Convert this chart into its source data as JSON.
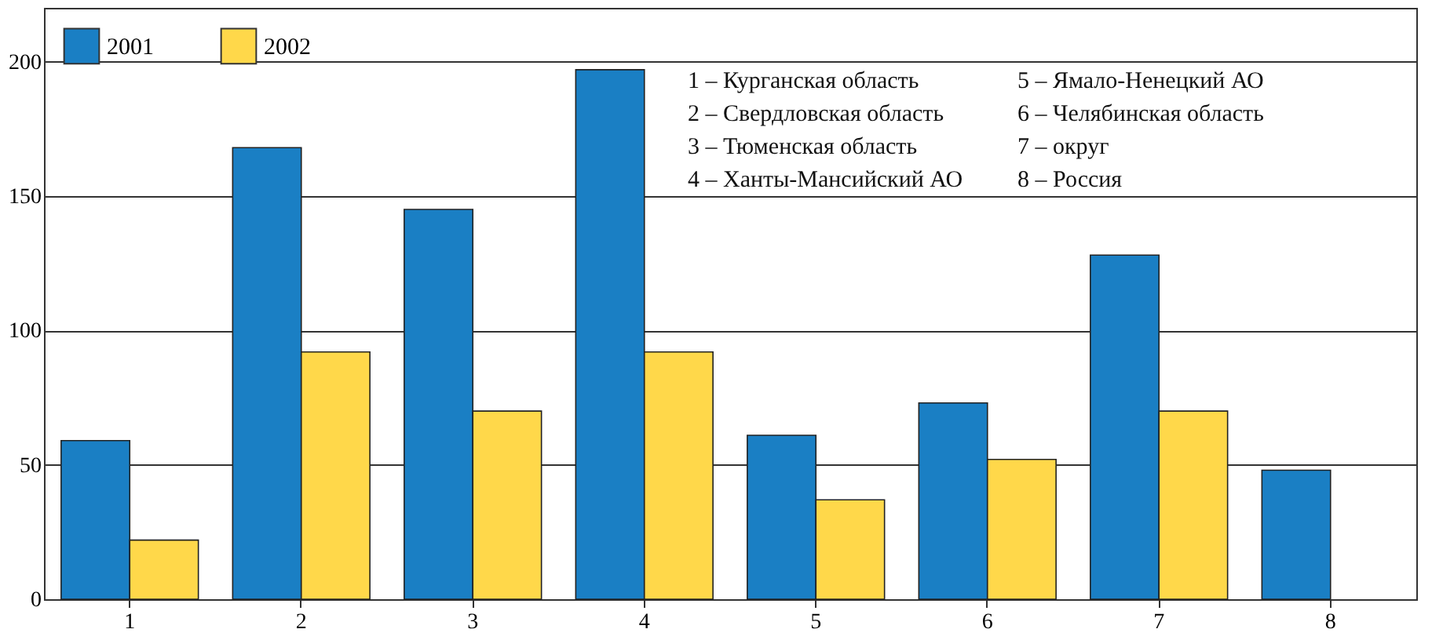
{
  "chart_data": {
    "type": "bar",
    "categories": [
      "1",
      "2",
      "3",
      "4",
      "5",
      "6",
      "7",
      "8"
    ],
    "series": [
      {
        "name": "2001",
        "color": "#1a7fc4",
        "values": [
          59,
          168,
          145,
          197,
          61,
          73,
          128,
          48
        ]
      },
      {
        "name": "2002",
        "color": "#ffd84a",
        "values": [
          22,
          92,
          70,
          92,
          37,
          52,
          70,
          null
        ]
      }
    ],
    "ylim": [
      0,
      220
    ],
    "yticks": [
      0,
      50,
      100,
      150,
      200
    ],
    "grid": "y",
    "legend": "top left",
    "annotations": [
      "1 – Курганская область",
      "2 – Свердловская область",
      "3 – Тюменская область",
      "4 – Ханты-Мансийский АО",
      "5 – Ямало-Ненецкий АО",
      "6 – Челябинская область",
      "7 – округ",
      "8 – Россия"
    ]
  }
}
